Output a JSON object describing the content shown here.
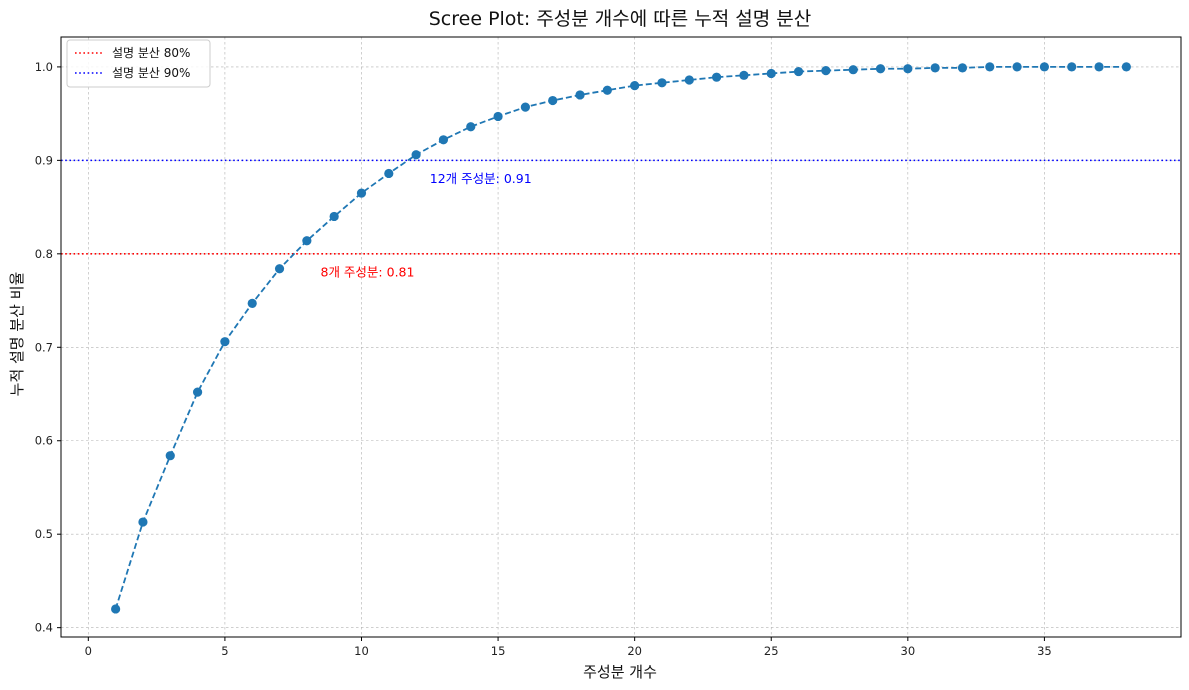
{
  "chart_data": {
    "type": "line",
    "title": "Scree Plot: 주성분 개수에 따른 누적 설명 분산",
    "xlabel": "주성분 개수",
    "ylabel": "누적 설명 분산 비율",
    "xlim": [
      -1,
      40
    ],
    "ylim": [
      0.39,
      1.032
    ],
    "xticks": [
      "0",
      "5",
      "10",
      "15",
      "20",
      "25",
      "30",
      "35"
    ],
    "xtick_values": [
      0,
      5,
      10,
      15,
      20,
      25,
      30,
      35
    ],
    "yticks": [
      "0.4",
      "0.5",
      "0.6",
      "0.7",
      "0.8",
      "0.9",
      "1.0"
    ],
    "ytick_values": [
      0.4,
      0.5,
      0.6,
      0.7,
      0.8,
      0.9,
      1.0
    ],
    "grid": true,
    "legend_position": "top-left",
    "series": [
      {
        "color": "#1f77b4",
        "line_style": "dashed",
        "marker": "circle",
        "x": [
          1,
          2,
          3,
          4,
          5,
          6,
          7,
          8,
          9,
          10,
          11,
          12,
          13,
          14,
          15,
          16,
          17,
          18,
          19,
          20,
          21,
          22,
          23,
          24,
          25,
          26,
          27,
          28,
          29,
          30,
          31,
          32,
          33,
          34,
          35,
          36,
          37,
          38
        ],
        "y": [
          0.42,
          0.513,
          0.584,
          0.652,
          0.706,
          0.747,
          0.784,
          0.814,
          0.84,
          0.865,
          0.886,
          0.906,
          0.922,
          0.936,
          0.947,
          0.957,
          0.964,
          0.97,
          0.975,
          0.98,
          0.983,
          0.986,
          0.989,
          0.991,
          0.993,
          0.995,
          0.996,
          0.997,
          0.998,
          0.998,
          0.999,
          0.999,
          1.0,
          1.0,
          1.0,
          1.0,
          1.0,
          1.0
        ]
      }
    ],
    "reference_lines": [
      {
        "name": "설명 분산 80%",
        "y": 0.8,
        "color": "#ff0000",
        "style": "dotted"
      },
      {
        "name": "설명 분산 90%",
        "y": 0.9,
        "color": "#0000ff",
        "style": "dotted"
      }
    ],
    "annotations": [
      {
        "text": "8개 주성분: 0.81",
        "x": 8.5,
        "y": 0.78,
        "color": "#ff0000"
      },
      {
        "text": "12개 주성분: 0.91",
        "x": 12.5,
        "y": 0.88,
        "color": "#0000ff"
      }
    ]
  }
}
